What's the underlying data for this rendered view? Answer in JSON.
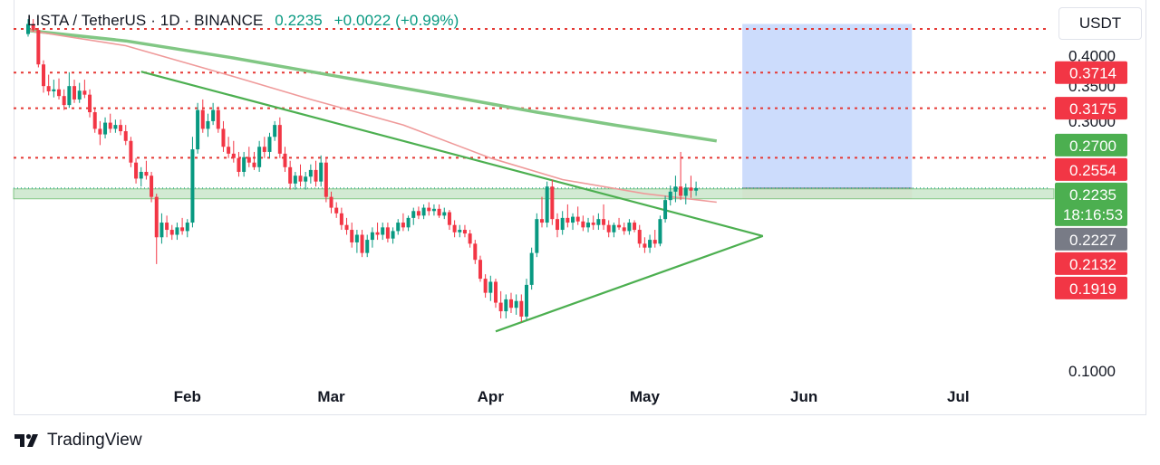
{
  "header": {
    "symbol_line": "LISTA / TetherUS · 1D · BINANCE",
    "last_price": "0.2235",
    "change": "+0.0022 (+0.99%)"
  },
  "currency_button": "USDT",
  "footer": {
    "brand": "TradingView",
    "logo_icon": "tradingview-logo-icon"
  },
  "colors": {
    "up": "#089981",
    "down": "#f23645",
    "trendline": "#4caf50",
    "ma_slow": "#81c784",
    "ma_fast": "#ef9a9a",
    "level_line": "#e53935",
    "target_zone": "#bbd0fb",
    "stop_zone": "#fad4d8",
    "support_band": "#c8e6c9"
  },
  "chart_data": {
    "type": "candlestick",
    "x_axis": {
      "ticks": [
        "Feb",
        "Mar",
        "Apr",
        "May",
        "Jun",
        "Jul"
      ]
    },
    "y_axis": {
      "scale": "log",
      "ticks": [
        "0.4000",
        "0.3500",
        "0.3000",
        "0.1000"
      ],
      "range": [
        0.09,
        0.47
      ]
    },
    "horizontal_levels": [
      0.45,
      0.3714,
      0.3175,
      0.2554
    ],
    "price_labels": [
      {
        "value": "0.3714",
        "kind": "red"
      },
      {
        "value": "0.3175",
        "kind": "red"
      },
      {
        "value": "0.2700",
        "kind": "green"
      },
      {
        "value": "0.2554",
        "kind": "red"
      },
      {
        "value": "0.2235",
        "kind": "green",
        "countdown": "18:16:53"
      },
      {
        "value": "0.2227",
        "kind": "gray"
      },
      {
        "value": "0.2132",
        "kind": "red"
      },
      {
        "value": "0.1919",
        "kind": "red"
      }
    ],
    "support_zone": {
      "from": 0.2132,
      "to": 0.2227
    },
    "long_position": {
      "start": "2025-05-20",
      "end": "2025-06-22",
      "entry": 0.2235,
      "target": 0.46,
      "stop": 0.2132
    },
    "trendlines": [
      {
        "from": [
          "2025-01-23",
          0.373
        ],
        "to": [
          "2025-05-24",
          0.181
        ]
      },
      {
        "from": [
          "2025-04-02",
          0.119
        ],
        "to": [
          "2025-05-24",
          0.181
        ]
      }
    ],
    "moving_averages": [
      {
        "points": [
          [
            "2025-01-01",
            0.447
          ],
          [
            "2025-01-20",
            0.427
          ],
          [
            "2025-02-10",
            0.396
          ],
          [
            "2025-03-01",
            0.367
          ],
          [
            "2025-03-20",
            0.34
          ],
          [
            "2025-04-10",
            0.312
          ],
          [
            "2025-04-25",
            0.295
          ],
          [
            "2025-05-15",
            0.275
          ]
        ]
      },
      {
        "points": [
          [
            "2025-01-01",
            0.447
          ],
          [
            "2025-01-20",
            0.418
          ],
          [
            "2025-02-10",
            0.365
          ],
          [
            "2025-02-25",
            0.33
          ],
          [
            "2025-03-15",
            0.295
          ],
          [
            "2025-04-01",
            0.255
          ],
          [
            "2025-04-15",
            0.232
          ],
          [
            "2025-05-01",
            0.218
          ],
          [
            "2025-05-15",
            0.21
          ]
        ]
      }
    ],
    "candles": [
      [
        "2025-01-01",
        0.44,
        0.47,
        0.435,
        0.46
      ],
      [
        "2025-01-02",
        0.46,
        0.47,
        0.445,
        0.448
      ],
      [
        "2025-01-03",
        0.448,
        0.452,
        0.38,
        0.385
      ],
      [
        "2025-01-04",
        0.385,
        0.392,
        0.34,
        0.35
      ],
      [
        "2025-01-05",
        0.35,
        0.368,
        0.336,
        0.342
      ],
      [
        "2025-01-06",
        0.342,
        0.36,
        0.333,
        0.345
      ],
      [
        "2025-01-07",
        0.345,
        0.362,
        0.33,
        0.335
      ],
      [
        "2025-01-08",
        0.335,
        0.345,
        0.315,
        0.322
      ],
      [
        "2025-01-09",
        0.322,
        0.372,
        0.318,
        0.35
      ],
      [
        "2025-01-10",
        0.35,
        0.36,
        0.325,
        0.33
      ],
      [
        "2025-01-11",
        0.33,
        0.355,
        0.325,
        0.343
      ],
      [
        "2025-01-12",
        0.343,
        0.36,
        0.332,
        0.337
      ],
      [
        "2025-01-13",
        0.337,
        0.345,
        0.305,
        0.312
      ],
      [
        "2025-01-14",
        0.312,
        0.318,
        0.285,
        0.29
      ],
      [
        "2025-01-15",
        0.29,
        0.3,
        0.27,
        0.283
      ],
      [
        "2025-01-16",
        0.283,
        0.305,
        0.278,
        0.298
      ],
      [
        "2025-01-17",
        0.298,
        0.31,
        0.285,
        0.29
      ],
      [
        "2025-01-18",
        0.29,
        0.302,
        0.285,
        0.295
      ],
      [
        "2025-01-19",
        0.295,
        0.302,
        0.282,
        0.287
      ],
      [
        "2025-01-20",
        0.287,
        0.295,
        0.27,
        0.275
      ],
      [
        "2025-01-21",
        0.275,
        0.28,
        0.245,
        0.25
      ],
      [
        "2025-01-22",
        0.25,
        0.255,
        0.228,
        0.233
      ],
      [
        "2025-01-23",
        0.233,
        0.245,
        0.225,
        0.24
      ],
      [
        "2025-01-24",
        0.24,
        0.252,
        0.232,
        0.236
      ],
      [
        "2025-01-25",
        0.236,
        0.24,
        0.21,
        0.215
      ],
      [
        "2025-01-26",
        0.215,
        0.218,
        0.16,
        0.18
      ],
      [
        "2025-01-27",
        0.18,
        0.2,
        0.175,
        0.192
      ],
      [
        "2025-01-28",
        0.192,
        0.198,
        0.18,
        0.186
      ],
      [
        "2025-01-29",
        0.186,
        0.19,
        0.178,
        0.182
      ],
      [
        "2025-01-30",
        0.182,
        0.192,
        0.178,
        0.188
      ],
      [
        "2025-01-31",
        0.188,
        0.196,
        0.182,
        0.185
      ],
      [
        "2025-02-01",
        0.185,
        0.195,
        0.18,
        0.192
      ],
      [
        "2025-02-02",
        0.192,
        0.28,
        0.188,
        0.265
      ],
      [
        "2025-02-03",
        0.265,
        0.325,
        0.26,
        0.315
      ],
      [
        "2025-02-04",
        0.315,
        0.33,
        0.285,
        0.29
      ],
      [
        "2025-02-05",
        0.29,
        0.31,
        0.28,
        0.3
      ],
      [
        "2025-02-06",
        0.3,
        0.325,
        0.295,
        0.315
      ],
      [
        "2025-02-07",
        0.315,
        0.32,
        0.285,
        0.29
      ],
      [
        "2025-02-08",
        0.29,
        0.3,
        0.262,
        0.268
      ],
      [
        "2025-02-09",
        0.268,
        0.28,
        0.255,
        0.26
      ],
      [
        "2025-02-10",
        0.26,
        0.275,
        0.25,
        0.255
      ],
      [
        "2025-02-11",
        0.255,
        0.262,
        0.235,
        0.24
      ],
      [
        "2025-02-12",
        0.24,
        0.262,
        0.235,
        0.256
      ],
      [
        "2025-02-13",
        0.256,
        0.268,
        0.245,
        0.25
      ],
      [
        "2025-02-14",
        0.25,
        0.262,
        0.242,
        0.245
      ],
      [
        "2025-02-15",
        0.245,
        0.275,
        0.24,
        0.268
      ],
      [
        "2025-02-16",
        0.268,
        0.28,
        0.255,
        0.262
      ],
      [
        "2025-02-17",
        0.262,
        0.285,
        0.255,
        0.28
      ],
      [
        "2025-02-18",
        0.28,
        0.3,
        0.275,
        0.295
      ],
      [
        "2025-02-19",
        0.295,
        0.305,
        0.255,
        0.26
      ],
      [
        "2025-02-20",
        0.26,
        0.268,
        0.24,
        0.245
      ],
      [
        "2025-02-21",
        0.245,
        0.252,
        0.222,
        0.228
      ],
      [
        "2025-02-22",
        0.228,
        0.24,
        0.222,
        0.236
      ],
      [
        "2025-02-23",
        0.236,
        0.248,
        0.225,
        0.23
      ],
      [
        "2025-02-24",
        0.23,
        0.24,
        0.222,
        0.235
      ],
      [
        "2025-02-25",
        0.235,
        0.248,
        0.228,
        0.242
      ],
      [
        "2025-02-26",
        0.242,
        0.252,
        0.225,
        0.23
      ],
      [
        "2025-02-27",
        0.23,
        0.258,
        0.225,
        0.25
      ],
      [
        "2025-02-28",
        0.25,
        0.255,
        0.21,
        0.215
      ],
      [
        "2025-03-01",
        0.215,
        0.22,
        0.2,
        0.205
      ],
      [
        "2025-03-02",
        0.205,
        0.21,
        0.196,
        0.2
      ],
      [
        "2025-03-03",
        0.2,
        0.205,
        0.186,
        0.19
      ],
      [
        "2025-03-04",
        0.19,
        0.196,
        0.182,
        0.186
      ],
      [
        "2025-03-05",
        0.186,
        0.192,
        0.172,
        0.176
      ],
      [
        "2025-03-06",
        0.176,
        0.186,
        0.168,
        0.182
      ],
      [
        "2025-03-07",
        0.182,
        0.186,
        0.165,
        0.168
      ],
      [
        "2025-03-08",
        0.168,
        0.182,
        0.165,
        0.178
      ],
      [
        "2025-03-09",
        0.178,
        0.188,
        0.172,
        0.184
      ],
      [
        "2025-03-10",
        0.184,
        0.192,
        0.178,
        0.182
      ],
      [
        "2025-03-11",
        0.182,
        0.192,
        0.178,
        0.188
      ],
      [
        "2025-03-12",
        0.188,
        0.192,
        0.176,
        0.179
      ],
      [
        "2025-03-13",
        0.179,
        0.188,
        0.175,
        0.185
      ],
      [
        "2025-03-14",
        0.185,
        0.195,
        0.182,
        0.192
      ],
      [
        "2025-03-15",
        0.192,
        0.2,
        0.185,
        0.188
      ],
      [
        "2025-03-16",
        0.188,
        0.198,
        0.185,
        0.196
      ],
      [
        "2025-03-17",
        0.196,
        0.205,
        0.19,
        0.202
      ],
      [
        "2025-03-18",
        0.202,
        0.206,
        0.195,
        0.198
      ],
      [
        "2025-03-19",
        0.198,
        0.208,
        0.195,
        0.205
      ],
      [
        "2025-03-20",
        0.205,
        0.21,
        0.198,
        0.202
      ],
      [
        "2025-03-21",
        0.202,
        0.208,
        0.198,
        0.204
      ],
      [
        "2025-03-22",
        0.204,
        0.208,
        0.196,
        0.198
      ],
      [
        "2025-03-23",
        0.198,
        0.205,
        0.195,
        0.201
      ],
      [
        "2025-03-24",
        0.201,
        0.203,
        0.186,
        0.19
      ],
      [
        "2025-03-25",
        0.19,
        0.194,
        0.18,
        0.184
      ],
      [
        "2025-03-26",
        0.184,
        0.19,
        0.18,
        0.186
      ],
      [
        "2025-03-27",
        0.186,
        0.19,
        0.18,
        0.183
      ],
      [
        "2025-03-28",
        0.183,
        0.186,
        0.172,
        0.175
      ],
      [
        "2025-03-29",
        0.175,
        0.178,
        0.16,
        0.163
      ],
      [
        "2025-03-30",
        0.163,
        0.166,
        0.148,
        0.15
      ],
      [
        "2025-03-31",
        0.15,
        0.153,
        0.138,
        0.141
      ],
      [
        "2025-04-01",
        0.141,
        0.152,
        0.136,
        0.148
      ],
      [
        "2025-04-02",
        0.148,
        0.15,
        0.132,
        0.135
      ],
      [
        "2025-04-03",
        0.135,
        0.142,
        0.126,
        0.13
      ],
      [
        "2025-04-04",
        0.13,
        0.14,
        0.126,
        0.137
      ],
      [
        "2025-04-05",
        0.137,
        0.141,
        0.129,
        0.132
      ],
      [
        "2025-04-06",
        0.132,
        0.14,
        0.128,
        0.136
      ],
      [
        "2025-04-07",
        0.136,
        0.14,
        0.124,
        0.127
      ],
      [
        "2025-04-08",
        0.127,
        0.15,
        0.125,
        0.146
      ],
      [
        "2025-04-09",
        0.146,
        0.172,
        0.143,
        0.168
      ],
      [
        "2025-04-10",
        0.168,
        0.2,
        0.165,
        0.195
      ],
      [
        "2025-04-11",
        0.195,
        0.215,
        0.188,
        0.192
      ],
      [
        "2025-04-12",
        0.192,
        0.23,
        0.188,
        0.225
      ],
      [
        "2025-04-13",
        0.225,
        0.232,
        0.19,
        0.195
      ],
      [
        "2025-04-14",
        0.195,
        0.2,
        0.18,
        0.186
      ],
      [
        "2025-04-15",
        0.186,
        0.202,
        0.182,
        0.196
      ],
      [
        "2025-04-16",
        0.196,
        0.208,
        0.188,
        0.192
      ],
      [
        "2025-04-17",
        0.192,
        0.2,
        0.186,
        0.197
      ],
      [
        "2025-04-18",
        0.197,
        0.206,
        0.19,
        0.193
      ],
      [
        "2025-04-19",
        0.193,
        0.198,
        0.185,
        0.188
      ],
      [
        "2025-04-20",
        0.188,
        0.196,
        0.184,
        0.192
      ],
      [
        "2025-04-21",
        0.192,
        0.198,
        0.186,
        0.19
      ],
      [
        "2025-04-22",
        0.19,
        0.2,
        0.186,
        0.195
      ],
      [
        "2025-04-23",
        0.195,
        0.208,
        0.186,
        0.19
      ],
      [
        "2025-04-24",
        0.19,
        0.194,
        0.18,
        0.184
      ],
      [
        "2025-04-25",
        0.184,
        0.192,
        0.18,
        0.19
      ],
      [
        "2025-04-26",
        0.19,
        0.196,
        0.186,
        0.188
      ],
      [
        "2025-04-27",
        0.188,
        0.192,
        0.182,
        0.185
      ],
      [
        "2025-04-28",
        0.185,
        0.195,
        0.182,
        0.192
      ],
      [
        "2025-04-29",
        0.192,
        0.194,
        0.184,
        0.186
      ],
      [
        "2025-04-30",
        0.186,
        0.19,
        0.172,
        0.175
      ],
      [
        "2025-05-01",
        0.175,
        0.18,
        0.168,
        0.172
      ],
      [
        "2025-05-02",
        0.172,
        0.182,
        0.168,
        0.178
      ],
      [
        "2025-05-03",
        0.178,
        0.186,
        0.172,
        0.175
      ],
      [
        "2025-05-04",
        0.175,
        0.198,
        0.173,
        0.195
      ],
      [
        "2025-05-05",
        0.195,
        0.216,
        0.192,
        0.212
      ],
      [
        "2025-05-06",
        0.212,
        0.226,
        0.207,
        0.22
      ],
      [
        "2025-05-07",
        0.22,
        0.236,
        0.21,
        0.225
      ],
      [
        "2025-05-08",
        0.225,
        0.262,
        0.212,
        0.216
      ],
      [
        "2025-05-09",
        0.216,
        0.228,
        0.208,
        0.224
      ],
      [
        "2025-05-10",
        0.224,
        0.236,
        0.214,
        0.221
      ],
      [
        "2025-05-11",
        0.221,
        0.23,
        0.216,
        0.2235
      ]
    ]
  }
}
